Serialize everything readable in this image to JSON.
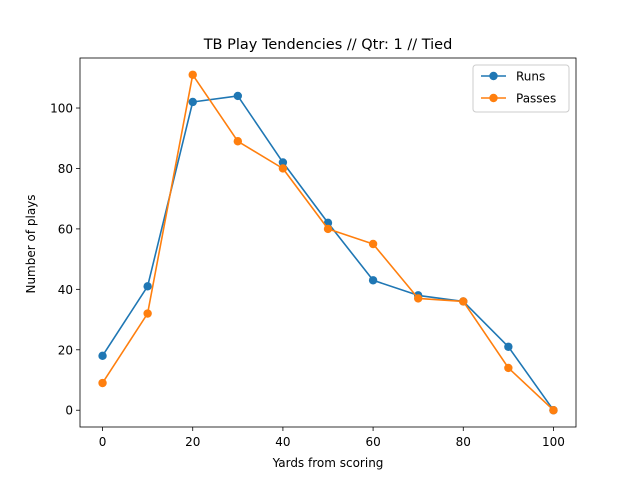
{
  "chart_data": {
    "type": "line",
    "title": "TB Play Tendencies // Qtr: 1 // Tied",
    "xlabel": "Yards from scoring",
    "ylabel": "Number of plays",
    "xlim": [
      -5,
      105
    ],
    "ylim": [
      -5.55,
      116.55
    ],
    "xticks": [
      0,
      20,
      40,
      60,
      80,
      100
    ],
    "yticks": [
      0,
      20,
      40,
      60,
      80,
      100
    ],
    "grid": false,
    "legend": "top-right",
    "x": [
      0,
      10,
      20,
      30,
      40,
      50,
      60,
      70,
      80,
      90,
      100
    ],
    "series": [
      {
        "name": "Runs",
        "color": "#1f77b4",
        "values": [
          18,
          41,
          102,
          104,
          82,
          62,
          43,
          38,
          36,
          21,
          0
        ]
      },
      {
        "name": "Passes",
        "color": "#ff7f0e",
        "values": [
          9,
          32,
          111,
          89,
          80,
          60,
          55,
          37,
          36,
          14,
          0
        ]
      }
    ]
  }
}
